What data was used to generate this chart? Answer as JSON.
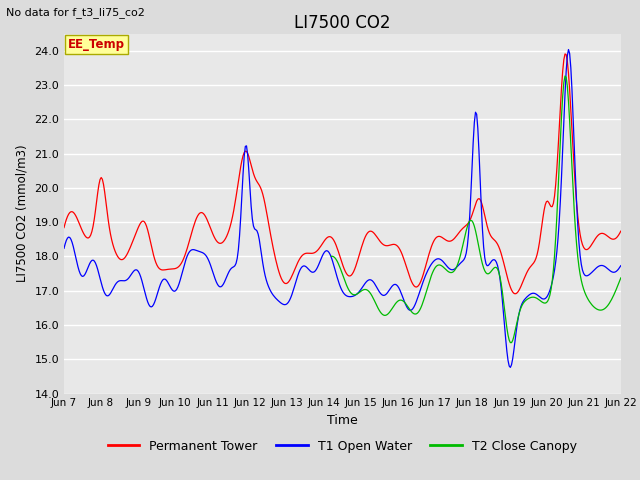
{
  "title": "LI7500 CO2",
  "subtitle": "No data for f_t3_li75_co2",
  "xlabel": "Time",
  "ylabel": "LI7500 CO2 (mmol/m3)",
  "ylim": [
    14.0,
    24.5
  ],
  "yticks": [
    14.0,
    15.0,
    16.0,
    17.0,
    18.0,
    19.0,
    20.0,
    21.0,
    22.0,
    23.0,
    24.0
  ],
  "xtick_labels": [
    "Jun 7",
    "Jun 8",
    "Jun 9",
    "Jun 10",
    "Jun 11",
    "Jun 12",
    "Jun 13",
    "Jun 14",
    "Jun 15",
    "Jun 16",
    "Jun 17",
    "Jun 18",
    "Jun 19",
    "Jun 20",
    "Jun 21",
    "Jun 22"
  ],
  "legend_entries": [
    "Permanent Tower",
    "T1 Open Water",
    "T2 Close Canopy"
  ],
  "legend_colors": [
    "#ff0000",
    "#0000ff",
    "#00bb00"
  ],
  "annotation_text": "EE_Temp",
  "bg_color": "#dcdcdc",
  "plot_bg_color": "#e8e8e8",
  "n_points": 480
}
